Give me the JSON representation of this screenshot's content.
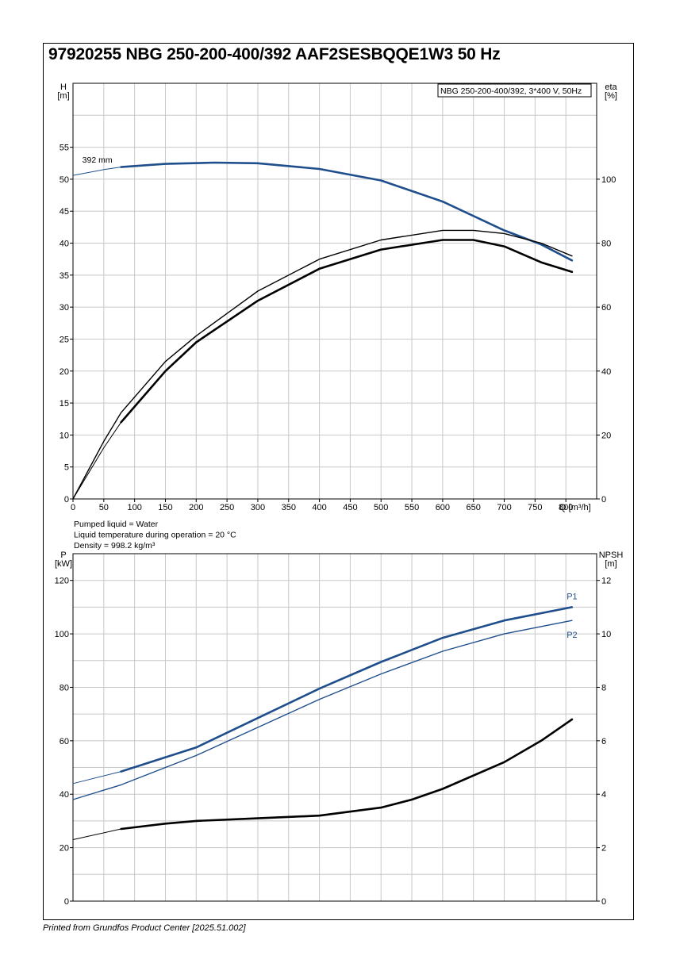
{
  "title": "97920255 NBG 250-200-400/392 AAF2SESBQQE1W3 50 Hz",
  "footer": "Printed from Grundfos Product Center [2025.51.002]",
  "colors": {
    "blue": "#1f4e8c",
    "black": "#000000",
    "grid": "#c8c8c8"
  },
  "chart_data": [
    {
      "type": "line",
      "name": "head-efficiency",
      "legend_box": "NBG 250-200-400/392, 3*400 V, 50Hz",
      "left_axis_label": [
        "H",
        "[m]"
      ],
      "right_axis_label": [
        "eta",
        "[%]"
      ],
      "xlabel": "Q [m³/h]",
      "xlim": [
        0,
        850
      ],
      "ylim_left": [
        0,
        65
      ],
      "ylim_right": [
        0,
        130
      ],
      "x_ticks": [
        0,
        50,
        100,
        150,
        200,
        250,
        300,
        350,
        400,
        450,
        500,
        550,
        600,
        650,
        700,
        750,
        800
      ],
      "y_left_ticks": [
        0,
        5,
        10,
        15,
        20,
        25,
        30,
        35,
        40,
        45,
        50,
        55
      ],
      "y_right_ticks": [
        0,
        20,
        40,
        60,
        80,
        100
      ],
      "grid": true,
      "annotations": [
        {
          "text": "392 mm",
          "x": 15,
          "y": 52.6
        }
      ],
      "series": [
        {
          "key": "head",
          "axis": "left",
          "color": "#1f4e8c",
          "x": [
            0,
            50,
            78,
            150,
            230,
            300,
            400,
            500,
            600,
            700,
            760,
            810
          ],
          "y": [
            50.6,
            51.5,
            51.9,
            52.4,
            52.6,
            52.5,
            51.6,
            49.8,
            46.5,
            42.0,
            39.8,
            37.3
          ],
          "thin_until": 78
        },
        {
          "key": "eta",
          "axis": "right",
          "color": "#000000",
          "x": [
            0,
            50,
            78,
            150,
            200,
            300,
            400,
            500,
            600,
            650,
            700,
            760,
            810
          ],
          "y": [
            0,
            16,
            24,
            40,
            49,
            62,
            72,
            78,
            81,
            81,
            79,
            74,
            71
          ],
          "thin_until": 78
        },
        {
          "key": "eta-outer",
          "axis": "right",
          "color": "#000000",
          "x": [
            0,
            50,
            78,
            150,
            200,
            300,
            400,
            500,
            600,
            650,
            700,
            760,
            810
          ],
          "y": [
            0,
            18,
            27,
            43,
            51,
            65,
            75,
            81,
            84,
            84,
            83,
            80,
            76
          ]
        }
      ]
    },
    {
      "type": "line",
      "name": "power-npsh",
      "left_axis_label": [
        "P",
        "[kW]"
      ],
      "right_axis_label": [
        "NPSH",
        "[m]"
      ],
      "notes": [
        "Pumped liquid = Water",
        "Liquid temperature during operation = 20 °C",
        "Density = 998.2 kg/m³"
      ],
      "xlim": [
        0,
        850
      ],
      "ylim_left": [
        0,
        130
      ],
      "ylim_right": [
        0,
        13
      ],
      "y_left_ticks": [
        0,
        20,
        40,
        60,
        80,
        100,
        120
      ],
      "y_right_ticks": [
        0,
        2,
        4,
        6,
        8,
        10,
        12
      ],
      "grid": true,
      "series": [
        {
          "key": "P1",
          "name": "P1",
          "axis": "left",
          "color": "#1f4e8c",
          "x": [
            0,
            78,
            200,
            300,
            400,
            500,
            600,
            700,
            810
          ],
          "y": [
            44,
            48.5,
            57.5,
            68.5,
            79.5,
            89.5,
            98.5,
            105,
            110
          ],
          "thin_until": 78
        },
        {
          "key": "P2",
          "name": "P2",
          "axis": "left",
          "color": "#1f4e8c",
          "x": [
            0,
            78,
            200,
            300,
            400,
            500,
            600,
            700,
            810
          ],
          "y": [
            38,
            43.5,
            54.5,
            65,
            75.5,
            85,
            93.5,
            100,
            105
          ]
        },
        {
          "key": "npsh",
          "axis": "right",
          "color": "#000000",
          "x": [
            0,
            78,
            150,
            200,
            300,
            400,
            500,
            550,
            600,
            700,
            760,
            810
          ],
          "y": [
            2.3,
            2.7,
            2.9,
            3.0,
            3.1,
            3.2,
            3.5,
            3.8,
            4.2,
            5.2,
            6.0,
            6.8
          ],
          "thin_until": 78
        }
      ]
    }
  ]
}
